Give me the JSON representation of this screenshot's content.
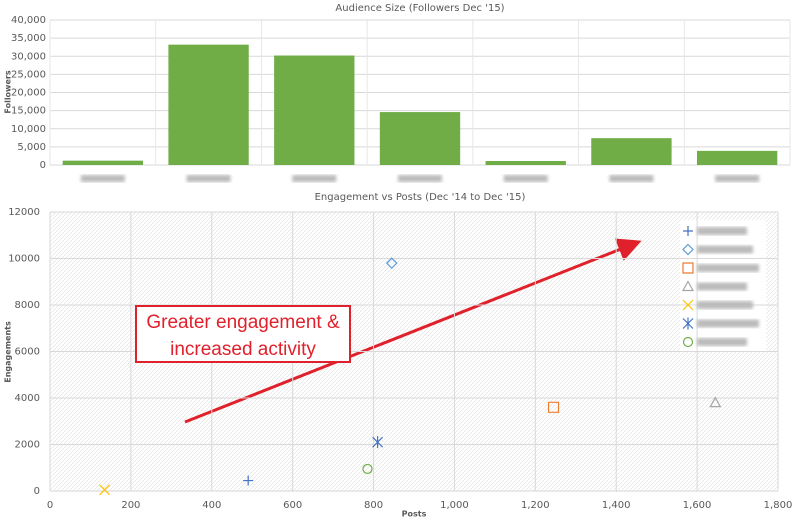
{
  "charts": [
    {
      "type": "bar",
      "title": "Audience Size (Followers Dec '15)",
      "y_label": "Followers",
      "categories": [
        null,
        null,
        null,
        null,
        null,
        null,
        null
      ],
      "values": [
        1200,
        33200,
        30200,
        14600,
        1100,
        7400,
        3900
      ],
      "color": "#70ad47",
      "ylim": [
        0,
        40000
      ],
      "yticks": [
        0,
        {
          "value": 5000,
          "label": "5,000"
        },
        {
          "value": 10000,
          "label": "10,000"
        },
        {
          "value": 15000,
          "label": "15,000"
        },
        {
          "value": 20000,
          "label": "20,000"
        },
        {
          "value": 25000,
          "label": "25,000"
        },
        {
          "value": 30000,
          "label": "30,000"
        },
        {
          "value": 35000,
          "label": "35,000"
        },
        {
          "value": 40000,
          "label": "40,000"
        }
      ],
      "grid": true
    },
    {
      "type": "scatter",
      "title": "Engagement vs Posts (Dec '14 to Dec '15)",
      "x_label": "Posts",
      "y_label": "Engagements",
      "annotation": "Greater engagement & increased activity",
      "xlim": [
        0,
        1800
      ],
      "xticks": [
        0,
        200,
        400,
        600,
        800,
        {
          "value": 1000,
          "label": "1,000"
        },
        {
          "value": 1200,
          "label": "1,200"
        },
        {
          "value": 1400,
          "label": "1,400"
        },
        {
          "value": 1600,
          "label": "1,600"
        },
        {
          "value": 1800,
          "label": "1,800"
        }
      ],
      "ylim": [
        0,
        12000
      ],
      "yticks": [
        0,
        2000,
        4000,
        6000,
        8000,
        10000,
        12000
      ],
      "grid": true,
      "series": [
        {
          "name": null,
          "marker": "plus",
          "color": "#4472c4",
          "x": [
            490
          ],
          "values": [
            450
          ]
        },
        {
          "name": null,
          "marker": "diamond",
          "color": "#5b9bd5",
          "x": [
            845
          ],
          "values": [
            9800
          ]
        },
        {
          "name": null,
          "marker": "square",
          "color": "#ed7d31",
          "x": [
            1245
          ],
          "values": [
            3600
          ]
        },
        {
          "name": null,
          "marker": "triangle",
          "color": "#a5a5a5",
          "x": [
            1645
          ],
          "values": [
            3800
          ]
        },
        {
          "name": null,
          "marker": "cross",
          "color": "#ffc000",
          "x": [
            135
          ],
          "values": [
            50
          ]
        },
        {
          "name": null,
          "marker": "star",
          "color": "#4472c4",
          "x": [
            810
          ],
          "values": [
            2100
          ]
        },
        {
          "name": null,
          "marker": "circle",
          "color": "#70ad47",
          "x": [
            785
          ],
          "values": [
            950
          ]
        }
      ]
    }
  ]
}
